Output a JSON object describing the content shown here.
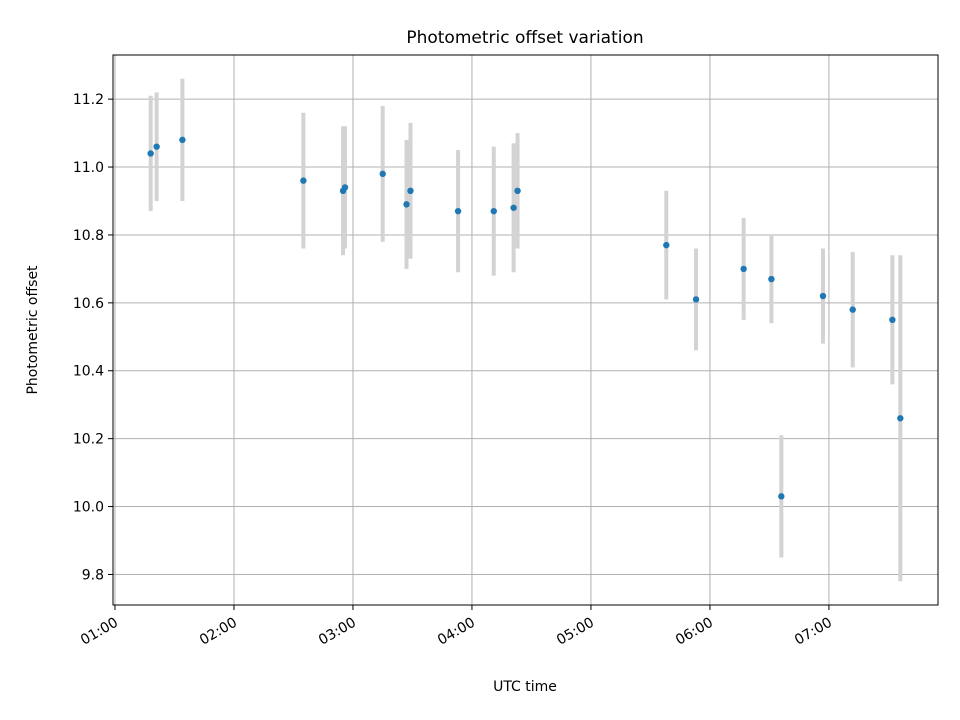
{
  "chart_data": {
    "type": "scatter",
    "title": "Photometric offset variation",
    "xlabel": "UTC time",
    "ylabel": "Photometric offset",
    "x_tick_labels": [
      "01:00",
      "02:00",
      "03:00",
      "04:00",
      "05:00",
      "06:00",
      "07:00"
    ],
    "y_tick_labels": [
      "9.8",
      "10.0",
      "10.2",
      "10.4",
      "10.6",
      "10.8",
      "11.0",
      "11.2"
    ],
    "y_ticks": [
      9.8,
      10.0,
      10.2,
      10.4,
      10.6,
      10.8,
      11.0,
      11.2
    ],
    "x_ticks": [
      "01:00",
      "02:00",
      "03:00",
      "04:00",
      "05:00",
      "06:00",
      "07:00"
    ],
    "xlim": [
      "00:59",
      "07:55"
    ],
    "ylim": [
      9.71,
      11.33
    ],
    "grid": true,
    "series": [
      {
        "marker_color": "#1f77b4",
        "errorbar_color": "#d3d3d3",
        "points": [
          {
            "x": "01:18",
            "y": 11.04,
            "err": 0.17
          },
          {
            "x": "01:21",
            "y": 11.06,
            "err": 0.16
          },
          {
            "x": "01:34",
            "y": 11.08,
            "err": 0.18
          },
          {
            "x": "02:35",
            "y": 10.96,
            "err": 0.2
          },
          {
            "x": "02:55",
            "y": 10.93,
            "err": 0.19
          },
          {
            "x": "02:56",
            "y": 10.94,
            "err": 0.18
          },
          {
            "x": "03:15",
            "y": 10.98,
            "err": 0.2
          },
          {
            "x": "03:27",
            "y": 10.89,
            "err": 0.19
          },
          {
            "x": "03:29",
            "y": 10.93,
            "err": 0.2
          },
          {
            "x": "03:53",
            "y": 10.87,
            "err": 0.18
          },
          {
            "x": "04:11",
            "y": 10.87,
            "err": 0.19
          },
          {
            "x": "04:21",
            "y": 10.88,
            "err": 0.19
          },
          {
            "x": "04:23",
            "y": 10.93,
            "err": 0.17
          },
          {
            "x": "05:38",
            "y": 10.77,
            "err": 0.16
          },
          {
            "x": "05:53",
            "y": 10.61,
            "err": 0.15
          },
          {
            "x": "06:17",
            "y": 10.7,
            "err": 0.15
          },
          {
            "x": "06:31",
            "y": 10.67,
            "err": 0.13
          },
          {
            "x": "06:36",
            "y": 10.03,
            "err": 0.18
          },
          {
            "x": "06:57",
            "y": 10.62,
            "err": 0.14
          },
          {
            "x": "07:12",
            "y": 10.58,
            "err": 0.17
          },
          {
            "x": "07:32",
            "y": 10.55,
            "err": 0.19
          },
          {
            "x": "07:36",
            "y": 10.26,
            "err": 0.48
          }
        ]
      }
    ]
  }
}
